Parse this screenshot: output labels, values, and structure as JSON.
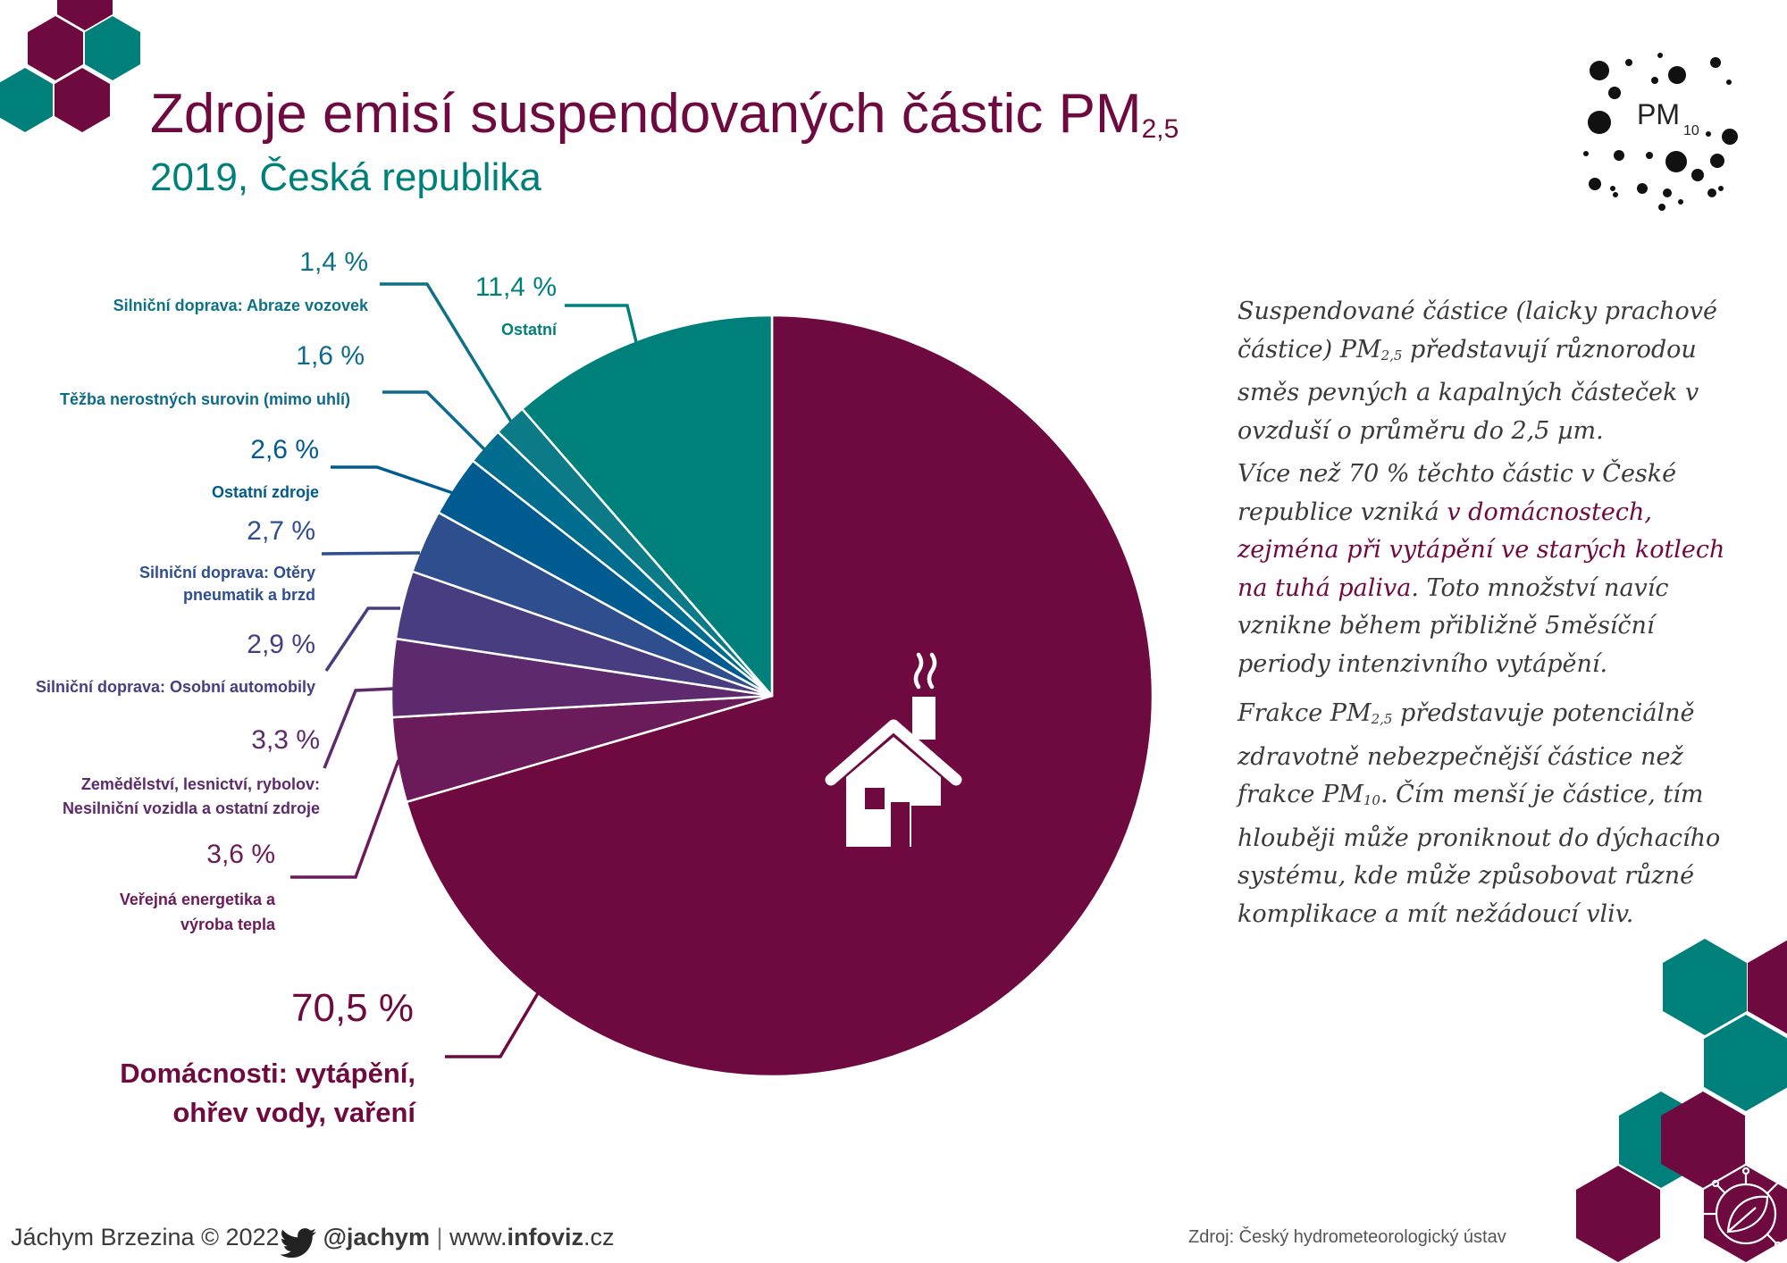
{
  "header": {
    "title_main": "Zdroje emisí suspendovaných částic PM",
    "title_sub": "2,5",
    "subtitle": "2019, Česká republika"
  },
  "logo": {
    "label": "PM",
    "sub": "10",
    "icon": "particles-icon"
  },
  "colors": {
    "plum": "#6f0a40",
    "teal": "#00807a",
    "text": "#3a3a3a"
  },
  "chart_data": {
    "type": "pie",
    "start_angle_deg": 0,
    "direction": "clockwise",
    "slices": [
      {
        "value": 70.5,
        "label": "70,5 %",
        "name": "Domácnosti: vytápění, ohřev vody, vaření",
        "color": "#6f0a40"
      },
      {
        "value": 3.6,
        "label": "3,6 %",
        "name": "Veřejná energetika a výroba tepla",
        "color": "#6b1a5a"
      },
      {
        "value": 3.3,
        "label": "3,3 %",
        "name": "Zemědělství, lesnictví, rybolov: Nesilniční vozidla a ostatní zdroje",
        "color": "#5e2a6e"
      },
      {
        "value": 2.9,
        "label": "2,9 %",
        "name": "Silniční doprava: Osobní automobily",
        "color": "#493d82"
      },
      {
        "value": 2.7,
        "label": "2,7 %",
        "name": "Silniční doprava: Otěry pneumatik a brzd",
        "color": "#2f4e8e"
      },
      {
        "value": 2.6,
        "label": "2,6 %",
        "name": "Ostatní zdroje",
        "color": "#005b91"
      },
      {
        "value": 1.6,
        "label": "1,6 %",
        "name": "Těžba nerostných surovin (mimo uhlí)",
        "color": "#006c8e"
      },
      {
        "value": 1.4,
        "label": "1,4 %",
        "name": "Silniční doprava: Abraze vozovek",
        "color": "#0d7a88"
      },
      {
        "value": 11.4,
        "label": "11,4 %",
        "name": "Ostatní",
        "color": "#00807a"
      }
    ]
  },
  "callouts": [
    {
      "pct": "1,4 %",
      "name": [
        "Silniční doprava: Abraze vozovek"
      ],
      "color": "#0d7285"
    },
    {
      "pct": "11,4 %",
      "name": [
        "Ostatní"
      ],
      "color": "#00807a"
    },
    {
      "pct": "1,6 %",
      "name": [
        "Těžba nerostných surovin (mimo uhlí)"
      ],
      "color": "#0d6a8a"
    },
    {
      "pct": "2,6 %",
      "name": [
        "Ostatní zdroje"
      ],
      "color": "#005b91"
    },
    {
      "pct": "2,7 %",
      "name": [
        "Silniční doprava: Otěry",
        "pneumatik a brzd"
      ],
      "color": "#2f4e8e"
    },
    {
      "pct": "2,9 %",
      "name": [
        "Silniční doprava: Osobní automobily"
      ],
      "color": "#493d82"
    },
    {
      "pct": "3,3 %",
      "name": [
        "Zemědělství, lesnictví, rybolov:",
        "Nesilniční vozidla a ostatní zdroje"
      ],
      "color": "#5e2a6e"
    },
    {
      "pct": "3,6 %",
      "name": [
        "Veřejná energetika a",
        "výroba tepla"
      ],
      "color": "#6b1a5a"
    },
    {
      "pct": "70,5 %",
      "name": [
        "Domácnosti: vytápění,",
        "ohřev vody, vaření"
      ],
      "color": "#6f0a40"
    }
  ],
  "paragraphs": {
    "p1_a": "Suspendované částice (laicky prachové částice) PM",
    "p1_sub": "2,5",
    "p1_b": " představují různorodou směs pevných a kapalných částeček v ovzduší o průměru do 2,5 µm.",
    "p2_a": "Více než 70 % těchto částic v České republice vzniká ",
    "p2_hl": "v domácnostech, zejména při vytápění ve starých kotlech na tuhá paliva",
    "p2_b": ". Toto množství navíc vznikne během přibližně 5měsíční periody intenzivního vytápění.",
    "p3_a": "Frakce PM",
    "p3_sub1": "2,5",
    "p3_b": " představuje potenciálně zdravotně nebezpečnější částice než frakce PM",
    "p3_sub2": "10",
    "p3_c": ". Čím menší je částice, tím hlouběji může proniknout do dýchacího systému, kde může způsobovat různé komplikace a mít nežádoucí vliv."
  },
  "footer": {
    "author": "Jáchym Brzezina © 2022",
    "twitter_icon": "twitter-bird-icon",
    "handle": "@jachym",
    "separator": "|",
    "site_prefix": "www.",
    "site_main": "infoviz",
    "site_suffix": ".cz",
    "source": "Zdroj: Český hydrometeorologický ústav"
  },
  "icons": {
    "house": "house-icon",
    "leaf": "leaf-network-icon",
    "hexagons": "hexagon-decoration"
  }
}
